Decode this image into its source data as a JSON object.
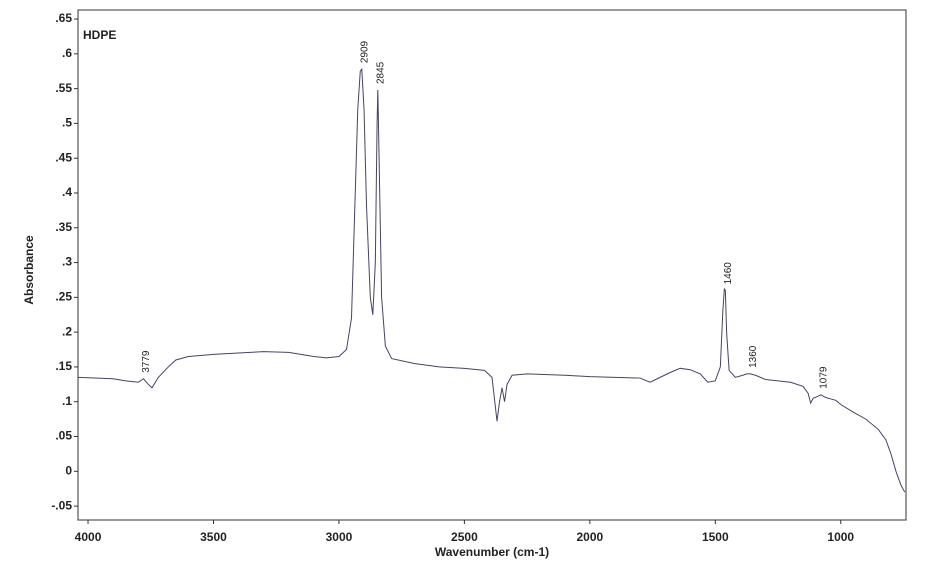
{
  "chart_data": {
    "type": "line",
    "annotation": "HDPE",
    "x_label": "Wavenumber (cm-1)",
    "y_label": "Absorbance",
    "color": "#4a4066",
    "xlim": [
      4040,
      740
    ],
    "ylim": [
      -0.07,
      0.663
    ],
    "xticks": [
      4000,
      3500,
      3000,
      2500,
      2000,
      1500,
      1000
    ],
    "yticks": [
      {
        "value": 0.65,
        "label": ".65"
      },
      {
        "value": 0.6,
        "label": ".6"
      },
      {
        "value": 0.55,
        "label": ".55"
      },
      {
        "value": 0.5,
        "label": ".5"
      },
      {
        "value": 0.45,
        "label": ".45"
      },
      {
        "value": 0.4,
        "label": ".4"
      },
      {
        "value": 0.35,
        "label": ".35"
      },
      {
        "value": 0.3,
        "label": ".3"
      },
      {
        "value": 0.25,
        "label": ".25"
      },
      {
        "value": 0.2,
        "label": ".2"
      },
      {
        "value": 0.15,
        "label": ".15"
      },
      {
        "value": 0.1,
        "label": ".1"
      },
      {
        "value": 0.05,
        "label": ".05"
      },
      0,
      {
        "value": -0.05,
        "label": "-.05"
      }
    ],
    "peak_labels": [
      3779,
      2909,
      2845,
      1460,
      1360,
      1079
    ],
    "x": [
      4040,
      3900,
      3850,
      3800,
      3779,
      3760,
      3745,
      3720,
      3680,
      3650,
      3600,
      3500,
      3400,
      3300,
      3200,
      3100,
      3050,
      3000,
      2970,
      2950,
      2935,
      2925,
      2915,
      2909,
      2900,
      2890,
      2875,
      2865,
      2855,
      2848,
      2845,
      2840,
      2830,
      2815,
      2790,
      2700,
      2600,
      2500,
      2420,
      2390,
      2370,
      2360,
      2350,
      2340,
      2330,
      2310,
      2250,
      2100,
      2000,
      1900,
      1800,
      1760,
      1720,
      1680,
      1640,
      1600,
      1560,
      1530,
      1500,
      1480,
      1470,
      1464,
      1460,
      1455,
      1445,
      1420,
      1390,
      1375,
      1360,
      1340,
      1300,
      1250,
      1200,
      1150,
      1130,
      1120,
      1110,
      1090,
      1079,
      1060,
      1040,
      1020,
      1000,
      950,
      900,
      850,
      820,
      800,
      780,
      760,
      745
    ],
    "values": [
      0.135,
      0.133,
      0.13,
      0.128,
      0.133,
      0.125,
      0.12,
      0.135,
      0.15,
      0.16,
      0.165,
      0.168,
      0.17,
      0.172,
      0.171,
      0.165,
      0.163,
      0.165,
      0.175,
      0.22,
      0.4,
      0.52,
      0.575,
      0.578,
      0.52,
      0.38,
      0.25,
      0.225,
      0.3,
      0.5,
      0.548,
      0.45,
      0.25,
      0.18,
      0.162,
      0.155,
      0.15,
      0.148,
      0.145,
      0.135,
      0.072,
      0.1,
      0.12,
      0.1,
      0.125,
      0.138,
      0.14,
      0.138,
      0.136,
      0.135,
      0.134,
      0.128,
      0.135,
      0.142,
      0.148,
      0.146,
      0.14,
      0.128,
      0.13,
      0.15,
      0.23,
      0.262,
      0.26,
      0.2,
      0.145,
      0.135,
      0.138,
      0.14,
      0.14,
      0.138,
      0.132,
      0.13,
      0.128,
      0.122,
      0.112,
      0.098,
      0.105,
      0.108,
      0.11,
      0.106,
      0.104,
      0.102,
      0.096,
      0.085,
      0.075,
      0.06,
      0.045,
      0.025,
      0,
      -0.02,
      -0.03
    ]
  }
}
